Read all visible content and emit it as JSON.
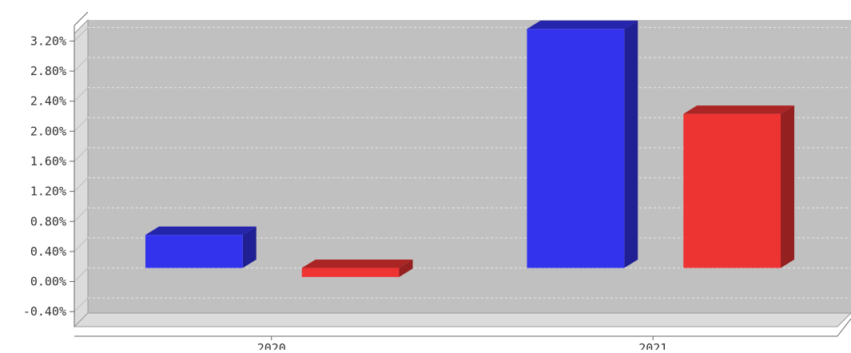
{
  "chart_data": {
    "type": "bar",
    "title": "",
    "xlabel": "",
    "ylabel": "",
    "categories": [
      "2020",
      "2021"
    ],
    "series": [
      {
        "color": "#3333ee",
        "values": [
          0.44,
          3.18
        ]
      },
      {
        "color": "#ee3333",
        "values": [
          -0.12,
          2.05
        ]
      }
    ],
    "ylim": [
      -0.6,
      3.3
    ],
    "yticks": [
      -0.4,
      0.0,
      0.4,
      0.8,
      1.2,
      1.6,
      2.0,
      2.4,
      2.8,
      3.2
    ],
    "ytick_labels": [
      "-0.40%",
      "0.00%",
      "0.40%",
      "0.80%",
      "1.20%",
      "1.60%",
      "2.00%",
      "2.40%",
      "2.80%",
      "3.20%"
    ],
    "grid": true,
    "legend": "none",
    "three_d": true,
    "plot_background": "#c0c0c0"
  }
}
